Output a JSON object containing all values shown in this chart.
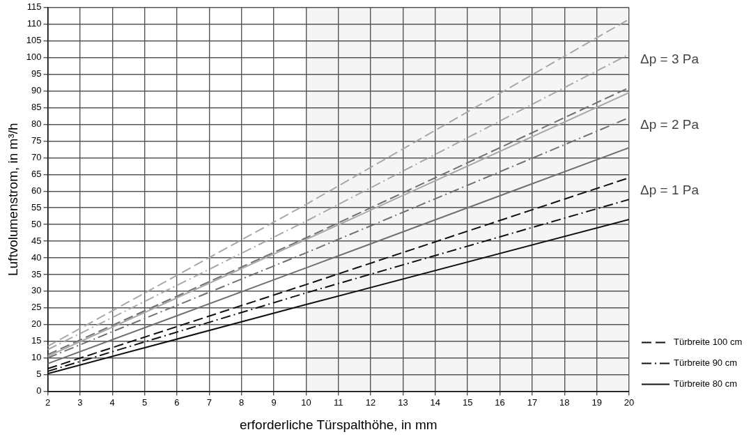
{
  "chart_data": {
    "type": "line",
    "xlabel": "erforderliche Türspalthöhe, in mm",
    "ylabel": "Luftvolumenstrom, in m³/h",
    "x": [
      2,
      10,
      20
    ],
    "series": [
      {
        "name": "Türbreite 100 cm",
        "color": "#111111",
        "line_style": "dashed",
        "values": [
          6.8,
          32,
          64
        ]
      },
      {
        "name": "Türbreite 90 cm",
        "color": "#111111",
        "line_style": "dashdot",
        "values": [
          6,
          29.5,
          57.5
        ]
      },
      {
        "name": "Türbreite 80 cm",
        "color": "#111111",
        "line_style": "solid",
        "values": [
          5.3,
          26,
          51.5
        ]
      },
      {
        "color": "#707070",
        "line_style": "dashed",
        "values": [
          11,
          46,
          91
        ]
      },
      {
        "color": "#707070",
        "line_style": "dashdot",
        "values": [
          10,
          41.5,
          82
        ]
      },
      {
        "color": "#707070",
        "line_style": "solid",
        "values": [
          8.3,
          37,
          73
        ]
      },
      {
        "color": "#a8a8a8",
        "line_style": "dashed",
        "values": [
          13.5,
          56,
          111.5
        ]
      },
      {
        "color": "#a8a8a8",
        "line_style": "dashdot",
        "values": [
          12.5,
          51,
          101
        ]
      },
      {
        "color": "#a8a8a8",
        "line_style": "solid",
        "values": [
          10.5,
          45.5,
          89.5
        ]
      }
    ],
    "annotations": [
      "Δp = 3 Pa",
      "Δp = 2 Pa",
      "Δp = 1 Pa"
    ],
    "bands": [
      {
        "axis": "x",
        "from": 10,
        "to": 20,
        "color": "#f5f5f5"
      }
    ],
    "xlim": [
      2,
      20
    ],
    "xticks": [
      2,
      3,
      4,
      5,
      6,
      7,
      8,
      9,
      10,
      11,
      12,
      13,
      14,
      15,
      16,
      17,
      18,
      19,
      20
    ],
    "ylim": [
      0,
      115
    ],
    "yticks": [
      0,
      5,
      10,
      15,
      20,
      25,
      30,
      35,
      40,
      45,
      50,
      55,
      60,
      65,
      70,
      75,
      80,
      85,
      90,
      95,
      100,
      105,
      110,
      115
    ],
    "grid": true,
    "legend": "bottom right",
    "marker": "none"
  }
}
